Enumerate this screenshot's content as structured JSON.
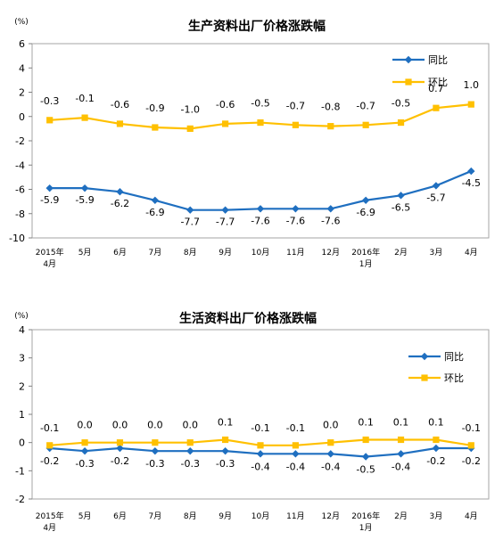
{
  "chart_data": [
    {
      "type": "line",
      "title": "生产资料出厂价格涨跌幅",
      "unit_label": "(%)",
      "ylim": [
        -10,
        6
      ],
      "yticks": [
        "6",
        "4",
        "2",
        "0",
        "-2",
        "-4",
        "-6",
        "-8",
        "-10"
      ],
      "categories": [
        [
          "2015年",
          "4月"
        ],
        [
          "5月"
        ],
        [
          "6月"
        ],
        [
          "7月"
        ],
        [
          "8月"
        ],
        [
          "9月"
        ],
        [
          "10月"
        ],
        [
          "11月"
        ],
        [
          "12月"
        ],
        [
          "2016年",
          "1月"
        ],
        [
          "2月"
        ],
        [
          "3月"
        ],
        [
          "4月"
        ]
      ],
      "series": [
        {
          "name": "同比",
          "color": "#1f6fc0",
          "marker": "diamond",
          "values": [
            -5.9,
            -5.9,
            -6.2,
            -6.9,
            -7.7,
            -7.7,
            -7.6,
            -7.6,
            -7.6,
            -6.9,
            -6.5,
            -5.7,
            -4.5
          ],
          "labels": [
            "-5.9",
            "-5.9",
            "-6.2",
            "-6.9",
            "-7.7",
            "-7.7",
            "-7.6",
            "-7.6",
            "-7.6",
            "-6.9",
            "-6.5",
            "-5.7",
            "-4.5"
          ]
        },
        {
          "name": "环比",
          "color": "#ffc000",
          "marker": "square",
          "values": [
            -0.3,
            -0.1,
            -0.6,
            -0.9,
            -1.0,
            -0.6,
            -0.5,
            -0.7,
            -0.8,
            -0.7,
            -0.5,
            0.7,
            1.0
          ],
          "labels": [
            "-0.3",
            "-0.1",
            "-0.6",
            "-0.9",
            "-1.0",
            "-0.6",
            "-0.5",
            "-0.7",
            "-0.8",
            "-0.7",
            "-0.5",
            "0.7",
            "1.0"
          ]
        }
      ],
      "legend_position": "top-right",
      "grid": false
    },
    {
      "type": "line",
      "title": "生活资料出厂价格涨跌幅",
      "unit_label": "(%)",
      "ylim": [
        -2,
        4
      ],
      "yticks": [
        "4",
        "3",
        "2",
        "1",
        "0",
        "-1",
        "-2"
      ],
      "categories": [
        [
          "2015年",
          "4月"
        ],
        [
          "5月"
        ],
        [
          "6月"
        ],
        [
          "7月"
        ],
        [
          "8月"
        ],
        [
          "9月"
        ],
        [
          "10月"
        ],
        [
          "11月"
        ],
        [
          "12月"
        ],
        [
          "2016年",
          "1月"
        ],
        [
          "2月"
        ],
        [
          "3月"
        ],
        [
          "4月"
        ]
      ],
      "series": [
        {
          "name": "同比",
          "color": "#1f6fc0",
          "marker": "diamond",
          "values": [
            -0.2,
            -0.3,
            -0.2,
            -0.3,
            -0.3,
            -0.3,
            -0.4,
            -0.4,
            -0.4,
            -0.5,
            -0.4,
            -0.2,
            -0.2
          ],
          "labels": [
            "-0.2",
            "-0.3",
            "-0.2",
            "-0.3",
            "-0.3",
            "-0.3",
            "-0.4",
            "-0.4",
            "-0.4",
            "-0.5",
            "-0.4",
            "-0.2",
            "-0.2"
          ]
        },
        {
          "name": "环比",
          "color": "#ffc000",
          "marker": "square",
          "values": [
            -0.1,
            0.0,
            0.0,
            0.0,
            0.0,
            0.1,
            -0.1,
            -0.1,
            0.0,
            0.1,
            0.1,
            0.1,
            -0.1
          ],
          "labels": [
            "-0.1",
            "0.0",
            "0.0",
            "0.0",
            "0.0",
            "0.1",
            "-0.1",
            "-0.1",
            "0.0",
            "0.1",
            "0.1",
            "0.1",
            "-0.1"
          ]
        }
      ],
      "legend_position": "top-right",
      "grid": false
    }
  ]
}
